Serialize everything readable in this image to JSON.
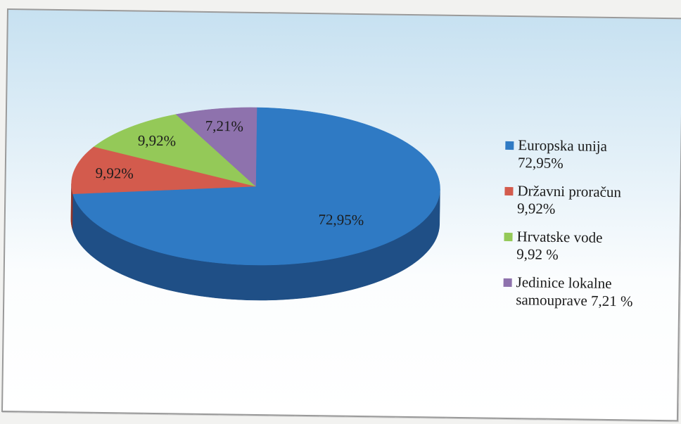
{
  "chart_data": {
    "type": "pie",
    "title": "",
    "slices": [
      {
        "label": "Europska unija",
        "value": 72.95,
        "data_label": "72,95%",
        "legend_text": "Europska unija\n72,95%",
        "color": "#2f7ac4",
        "side_color": "#1f4f86"
      },
      {
        "label": "Državni proračun",
        "value": 9.92,
        "data_label": "9,92%",
        "legend_text": "Državni proračun\n9,92%",
        "color": "#d35b4d",
        "side_color": "#8e3329"
      },
      {
        "label": "Hrvatske vode",
        "value": 9.92,
        "data_label": "9,92%",
        "legend_text": "Hrvatske vode\n9,92 %",
        "color": "#94c958",
        "side_color": "#5f8a33"
      },
      {
        "label": "Jedinice lokalne samouprave",
        "value": 7.21,
        "data_label": "7,21%",
        "legend_text": "Jedinice lokalne\nsamouprave  7,21 %",
        "color": "#8e72ad",
        "side_color": "#5c4876"
      }
    ],
    "start_angle_deg": -90,
    "direction": "clockwise",
    "style": "3d-perspective",
    "legend_position": "right"
  }
}
